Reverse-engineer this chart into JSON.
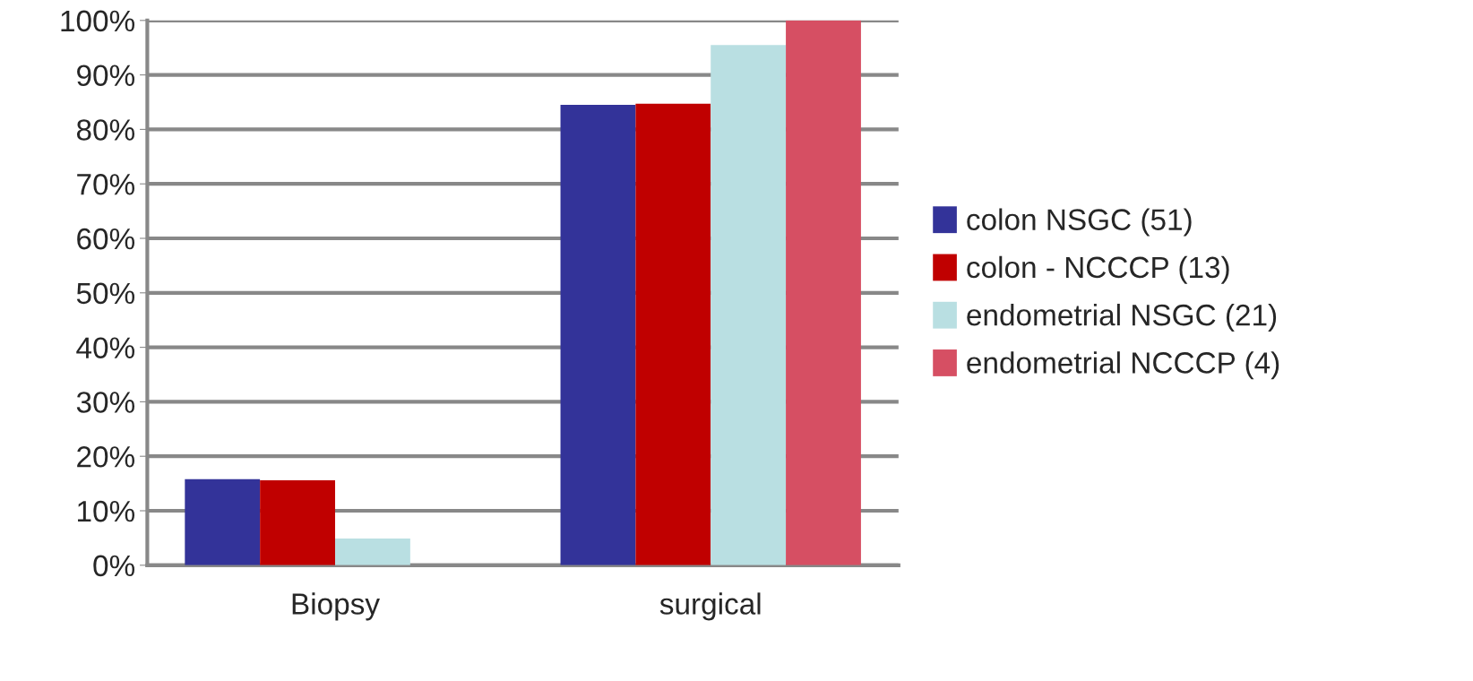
{
  "chart_data": {
    "type": "bar",
    "categories": [
      "Biopsy",
      "surgical"
    ],
    "series": [
      {
        "name": "colon NSGC (51)",
        "color": "#333399",
        "values": [
          15.8,
          84.5
        ]
      },
      {
        "name": "colon - NCCCP (13)",
        "color": "#c00000",
        "values": [
          15.6,
          84.7
        ]
      },
      {
        "name": "endometrial NSGC (21)",
        "color": "#b9dfe2",
        "values": [
          4.9,
          95.5
        ]
      },
      {
        "name": "endometrial NCCCP (4)",
        "color": "#d64f63",
        "values": [
          null,
          100
        ]
      }
    ],
    "ylim": [
      0,
      100
    ],
    "yticks": [
      {
        "value": 0,
        "label": "0%"
      },
      {
        "value": 10,
        "label": "10%"
      },
      {
        "value": 20,
        "label": "20%"
      },
      {
        "value": 30,
        "label": "30%"
      },
      {
        "value": 40,
        "label": "40%"
      },
      {
        "value": 50,
        "label": "50%"
      },
      {
        "value": 60,
        "label": "60%"
      },
      {
        "value": 70,
        "label": "70%"
      },
      {
        "value": 80,
        "label": "80%"
      },
      {
        "value": 90,
        "label": "90%"
      },
      {
        "value": 100,
        "label": "100%"
      }
    ],
    "grid": "y",
    "legend": "right"
  }
}
